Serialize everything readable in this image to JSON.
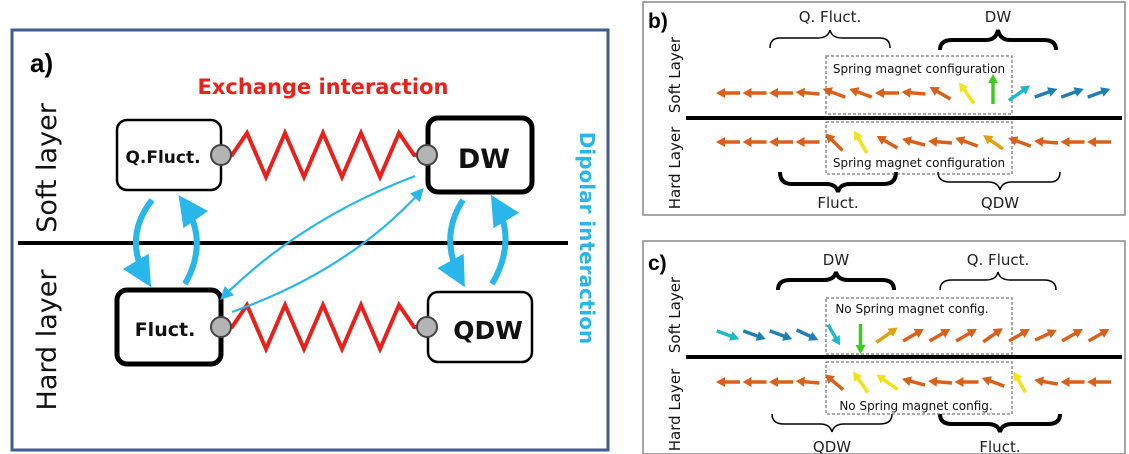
{
  "panel_a": {
    "label": "a)",
    "soft_layer": "Soft layer",
    "hard_layer": "Hard layer",
    "exchange_interaction": "Exchange interaction",
    "dipolar_interaction": "Dipolar interaction",
    "box_qfluct": "Q.Fluct.",
    "box_dw": "DW",
    "box_fluct": "Fluct.",
    "box_qdw": "QDW",
    "colors": {
      "exchange": "#e8211c",
      "dipolar": "#29b6ea",
      "frame": "#3f5e8e"
    }
  },
  "panel_b": {
    "label": "b)",
    "soft_layer": "Soft Layer",
    "hard_layer": "Hard Layer",
    "top_left_brace": "Q. Fluct.",
    "top_right_brace": "DW",
    "bottom_left_brace": "Fluct.",
    "bottom_right_brace": "QDW",
    "soft_config": "Spring magnet configuration",
    "hard_config": "Spring magnet configuration"
  },
  "panel_c": {
    "label": "c)",
    "soft_layer": "Soft Layer",
    "hard_layer": "Hard Layer",
    "top_left_brace": "DW",
    "top_right_brace": "Q. Fluct.",
    "bottom_left_brace": "QDW",
    "bottom_right_brace": "Fluct.",
    "soft_config": "No Spring magnet config.",
    "hard_config": "No Spring magnet config."
  },
  "arrow_colors": {
    "orange": "#d9601a",
    "gold": "#e0a010",
    "yellow": "#f2e21a",
    "green": "#3ccc1a",
    "cyan": "#1fb8c8",
    "blue": "#1e7fb5"
  }
}
